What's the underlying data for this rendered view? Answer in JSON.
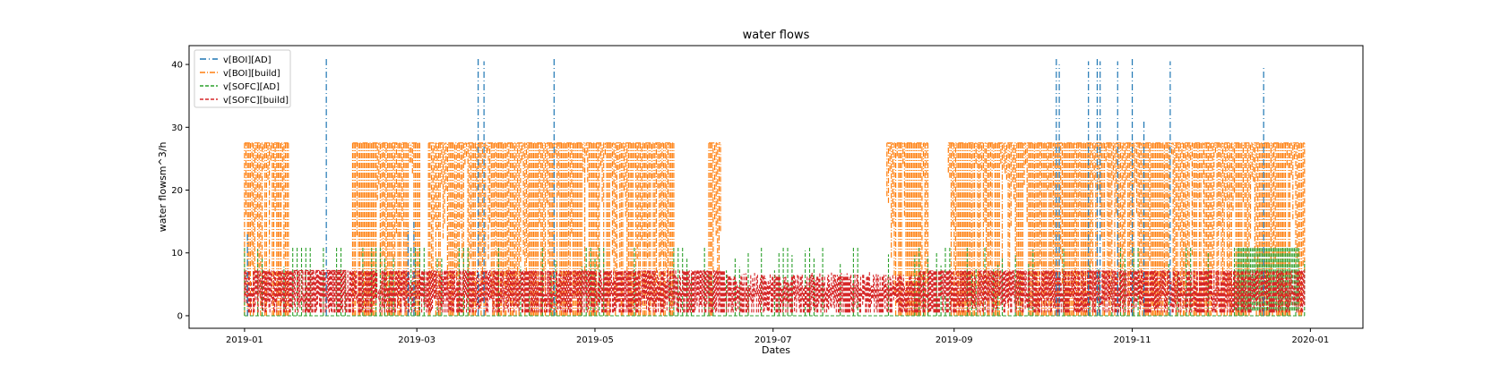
{
  "chart_data": {
    "type": "line",
    "title": "water flows",
    "xlabel": "Dates",
    "ylabel": "water flowsm^3/h",
    "x_tick_labels": [
      "2019-01",
      "2019-03",
      "2019-05",
      "2019-07",
      "2019-09",
      "2019-11",
      "2020-01"
    ],
    "x_tick_dates": [
      "2019-01-01",
      "2019-03-01",
      "2019-05-01",
      "2019-07-01",
      "2019-09-01",
      "2019-11-01",
      "2020-01-01"
    ],
    "y_tick_labels": [
      "0",
      "10",
      "20",
      "30",
      "40"
    ],
    "y_ticks": [
      0,
      10,
      20,
      30,
      40
    ],
    "xlim": [
      "2018-12-13",
      "2020-01-19"
    ],
    "ylim": [
      -2,
      43
    ],
    "grid": false,
    "legend_position": "top-left",
    "series": [
      {
        "name": "v[BOI][AD]",
        "color": "#1f77b4",
        "linestyle": "dashdot-sparse",
        "spikes": [
          {
            "date": "2019-01-29",
            "value": 41
          },
          {
            "date": "2019-03-22",
            "value": 41
          },
          {
            "date": "2019-03-24",
            "value": 40.5
          },
          {
            "date": "2019-04-17",
            "value": 41
          },
          {
            "date": "2019-10-06",
            "value": 41
          },
          {
            "date": "2019-10-07",
            "value": 40
          },
          {
            "date": "2019-10-17",
            "value": 40.5
          },
          {
            "date": "2019-10-20",
            "value": 41
          },
          {
            "date": "2019-10-21",
            "value": 40.5
          },
          {
            "date": "2019-10-27",
            "value": 40.5
          },
          {
            "date": "2019-11-01",
            "value": 41
          },
          {
            "date": "2019-11-05",
            "value": 31
          },
          {
            "date": "2019-11-14",
            "value": 40.5
          },
          {
            "date": "2019-12-16",
            "value": 39.5
          }
        ]
      },
      {
        "name": "v[BOI][build]",
        "color": "#ff7f0e",
        "linestyle": "dashdot",
        "level": 27.5,
        "active_periods": [
          [
            "2019-01-01",
            "2019-01-16"
          ],
          [
            "2019-02-07",
            "2019-03-02"
          ],
          [
            "2019-03-05",
            "2019-05-28"
          ],
          [
            "2019-06-09",
            "2019-06-13"
          ],
          [
            "2019-08-09",
            "2019-08-23"
          ],
          [
            "2019-08-30",
            "2019-12-30"
          ]
        ]
      },
      {
        "name": "v[SOFC][AD]",
        "color": "#2ca02c",
        "linestyle": "dashed",
        "level": 11
      },
      {
        "name": "v[SOFC][build]",
        "color": "#d62728",
        "linestyle": "dashed",
        "level": 7.2,
        "min_level": 0.5
      }
    ]
  }
}
